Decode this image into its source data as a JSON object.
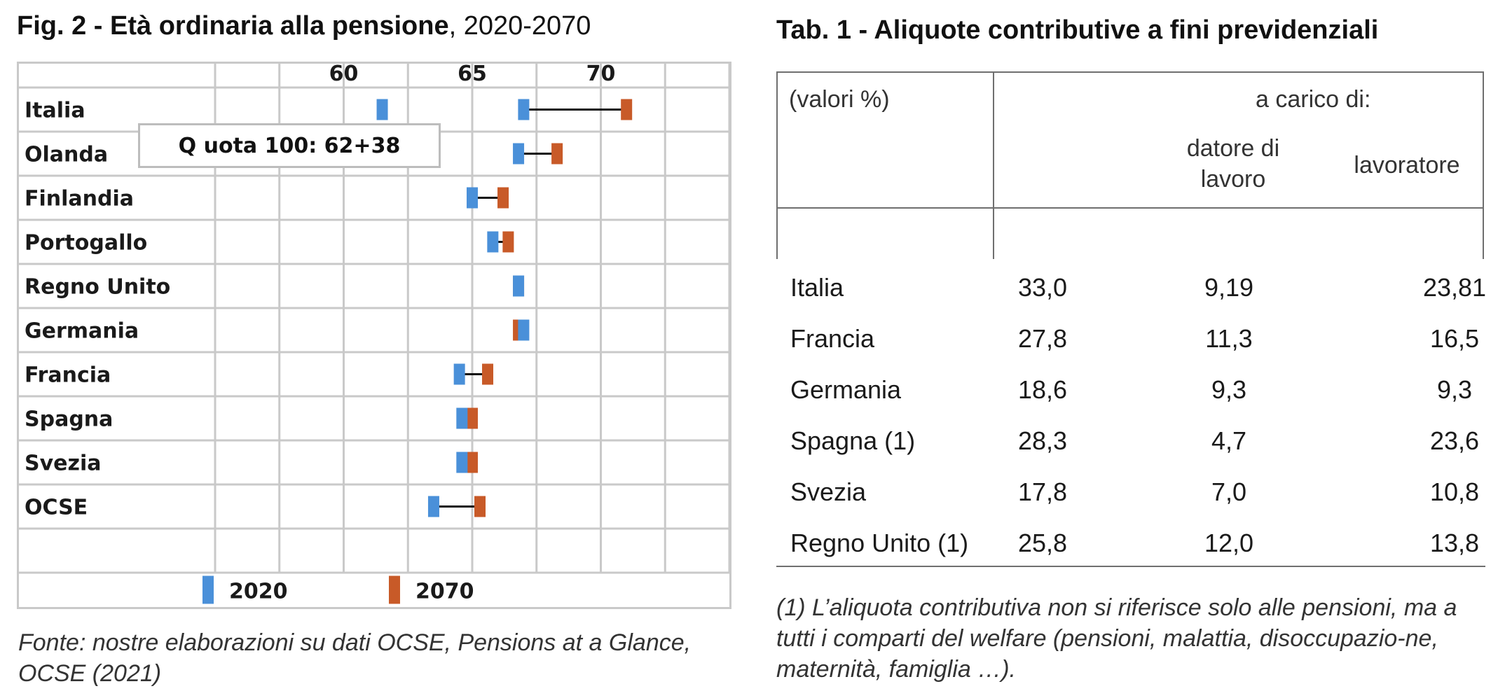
{
  "figure": {
    "title_bold": "Fig. 2 - Età ordinaria alla pensione",
    "title_rest": ", 2020-2070",
    "annotation": "Q uota 100: 62+38",
    "source": "Fonte: nostre elaborazioni su dati OCSE, Pensions at a Glance, OCSE (2021)"
  },
  "chart_data": {
    "type": "dumbbell",
    "title": "Età ordinaria alla pensione, 2020-2070",
    "xlabel": "",
    "ylabel": "",
    "x_ticks": [
      60,
      65,
      70
    ],
    "xlim": [
      55,
      75
    ],
    "grid": true,
    "legend_position": "bottom",
    "categories": [
      "Italia",
      "Olanda",
      "Finlandia",
      "Portogallo",
      "Regno Unito",
      "Germania",
      "Francia",
      "Spagna",
      "Svezia",
      "OCSE"
    ],
    "series": [
      {
        "name": "2020",
        "color": "#4a90d9",
        "values": [
          67.0,
          66.8,
          65.0,
          65.8,
          66.8,
          67.0,
          64.5,
          64.6,
          64.6,
          63.5
        ]
      },
      {
        "name": "2070",
        "color": "#c85a28",
        "values": [
          71.0,
          68.3,
          66.2,
          66.4,
          66.8,
          66.8,
          65.6,
          65.0,
          65.0,
          65.3
        ]
      }
    ],
    "extra_markers": [
      {
        "category": "Italia",
        "series": "2020",
        "value": 61.5
      }
    ]
  },
  "table": {
    "title": "Tab. 1 - Aliquote contributive a fini previdenziali",
    "unit": "(valori %)",
    "group_header": "a carico di:",
    "col_datore": "datore di lavoro",
    "col_lavoratore": "lavoratore",
    "rows": [
      {
        "country": "Italia",
        "total": "33,0",
        "datore": "9,19",
        "lavoratore": "23,81"
      },
      {
        "country": "Francia",
        "total": "27,8",
        "datore": "11,3",
        "lavoratore": "16,5"
      },
      {
        "country": "Germania",
        "total": "18,6",
        "datore": "9,3",
        "lavoratore": "9,3"
      },
      {
        "country": "Spagna (1)",
        "total": "28,3",
        "datore": "4,7",
        "lavoratore": "23,6"
      },
      {
        "country": "Svezia",
        "total": "17,8",
        "datore": "7,0",
        "lavoratore": "10,8"
      },
      {
        "country": "Regno Unito (1)",
        "total": "25,8",
        "datore": "12,0",
        "lavoratore": "13,8"
      }
    ],
    "note": "(1) L’aliquota contributiva non si riferisce solo alle pensioni, ma a tutti i comparti del welfare (pensioni, malattia, disoccupazio-ne, maternità, famiglia …)."
  }
}
